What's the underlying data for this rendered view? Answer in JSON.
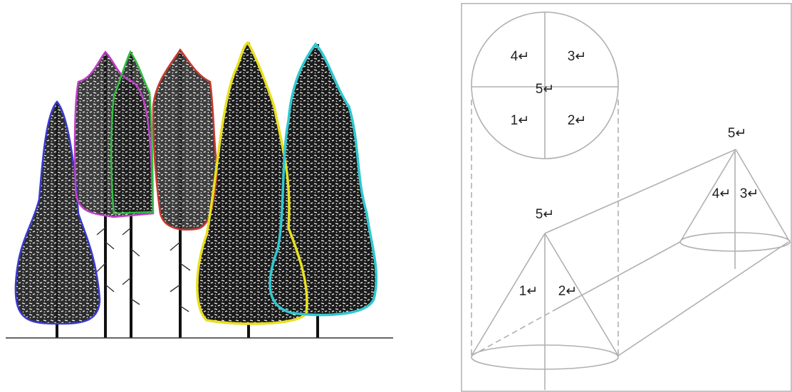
{
  "circle_labels": [
    "4↵",
    "3↵",
    "5↵",
    "1↵",
    "2↵"
  ],
  "front_cone_labels": [
    "5↵",
    "1↵",
    "2↵"
  ],
  "back_cone_labels": [
    "5↵",
    "4↵",
    "3↵"
  ]
}
